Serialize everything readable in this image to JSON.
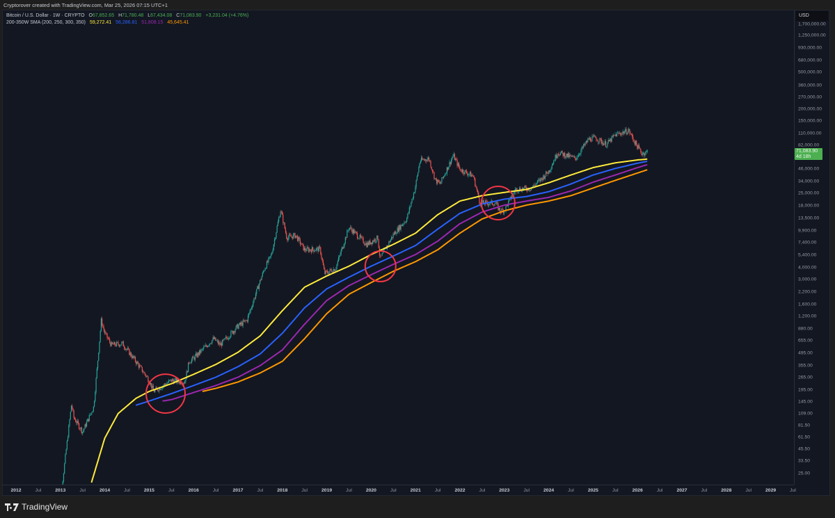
{
  "credit": "Cryptorover created with TradingView.com, Mar 25, 2026 07:15 UTC+1",
  "legend": {
    "symbol": "Bitcoin / U.S. Dollar · 1W · CRYPTO",
    "o_label": "O",
    "open": "67,852.65",
    "h_label": "H",
    "high": "71,780.48",
    "l_label": "L",
    "low": "67,434.08",
    "c_label": "C",
    "close": "71,083.90",
    "change": "+3,231.04 (+4.76%)",
    "indicator": "200-350W SMA (200, 250, 300, 350)",
    "sma200": "59,272.41",
    "sma250": "56,286.81",
    "sma300": "51,808.15",
    "sma350": "45,645.41"
  },
  "currency": "USD",
  "price_label": {
    "price": "71,083.90",
    "countdown": "4d 18h"
  },
  "brand": "TradingView",
  "colors": {
    "bg": "#131722",
    "up": "#26a69a",
    "down": "#ef5350",
    "sma200": "#ffeb3b",
    "sma250": "#2962ff",
    "sma300": "#9c27b0",
    "sma350": "#ff9800",
    "circle": "#f23645",
    "last": "#4caf50"
  },
  "chart_data": {
    "type": "candlestick",
    "title": "Bitcoin / U.S. Dollar · 1W · CRYPTO",
    "yscale": "log",
    "ylim": [
      19,
      1800000
    ],
    "xlim": [
      2011.8,
      2029.5
    ],
    "y_ticks": [
      "1,700,000.00",
      "1,250,000.00",
      "930,000.00",
      "680,000.00",
      "500,000.00",
      "360,000.00",
      "270,000.00",
      "200,000.00",
      "150,000.00",
      "110,000.00",
      "82,000.00",
      "46,000.00",
      "34,000.00",
      "25,000.00",
      "18,000.00",
      "13,500.00",
      "9,900.00",
      "7,400.00",
      "5,400.00",
      "4,000.00",
      "3,000.00",
      "2,200.00",
      "1,600.00",
      "1,200.00",
      "880.00",
      "655.00",
      "495.00",
      "355.00",
      "265.00",
      "195.00",
      "145.00",
      "109.00",
      "81.50",
      "61.50",
      "45.50",
      "33.50",
      "25.00"
    ],
    "x_ticks": [
      "2012",
      "Jul",
      "2013",
      "Jul",
      "2014",
      "Jul",
      "2015",
      "Jul",
      "2016",
      "Jul",
      "2017",
      "Jul",
      "2018",
      "Jul",
      "2019",
      "Jul",
      "2020",
      "Jul",
      "2021",
      "Jul",
      "2022",
      "Jul",
      "2023",
      "Jul",
      "2024",
      "Jul",
      "2025",
      "Jul",
      "2026",
      "Jul",
      "2027",
      "Jul",
      "2028",
      "Jul",
      "2029",
      "Jul"
    ],
    "price_series": [
      [
        2012.9,
        12
      ],
      [
        2013.0,
        13
      ],
      [
        2013.25,
        140
      ],
      [
        2013.3,
        100
      ],
      [
        2013.5,
        70
      ],
      [
        2013.75,
        130
      ],
      [
        2013.92,
        1100
      ],
      [
        2014.0,
        800
      ],
      [
        2014.15,
        600
      ],
      [
        2014.4,
        620
      ],
      [
        2014.7,
        400
      ],
      [
        2015.0,
        250
      ],
      [
        2015.1,
        190
      ],
      [
        2015.5,
        250
      ],
      [
        2015.8,
        240
      ],
      [
        2015.9,
        400
      ],
      [
        2016.0,
        430
      ],
      [
        2016.45,
        700
      ],
      [
        2016.6,
        600
      ],
      [
        2016.99,
        950
      ],
      [
        2017.2,
        1100
      ],
      [
        2017.45,
        2500
      ],
      [
        2017.6,
        4000
      ],
      [
        2017.75,
        5500
      ],
      [
        2017.96,
        17000
      ],
      [
        2018.1,
        8500
      ],
      [
        2018.3,
        9000
      ],
      [
        2018.5,
        6300
      ],
      [
        2018.85,
        6400
      ],
      [
        2018.95,
        3500
      ],
      [
        2019.2,
        4000
      ],
      [
        2019.5,
        11000
      ],
      [
        2019.9,
        7200
      ],
      [
        2020.15,
        8500
      ],
      [
        2020.2,
        5000
      ],
      [
        2020.5,
        9200
      ],
      [
        2020.8,
        13500
      ],
      [
        2020.99,
        29000
      ],
      [
        2021.1,
        57000
      ],
      [
        2021.3,
        60000
      ],
      [
        2021.45,
        35000
      ],
      [
        2021.55,
        32000
      ],
      [
        2021.85,
        65000
      ],
      [
        2022.0,
        46000
      ],
      [
        2022.3,
        39000
      ],
      [
        2022.45,
        20000
      ],
      [
        2022.8,
        20000
      ],
      [
        2022.9,
        16500
      ],
      [
        2023.0,
        16800
      ],
      [
        2023.25,
        28000
      ],
      [
        2023.6,
        29000
      ],
      [
        2023.8,
        35000
      ],
      [
        2024.0,
        44000
      ],
      [
        2024.2,
        70000
      ],
      [
        2024.6,
        60000
      ],
      [
        2024.9,
        97000
      ],
      [
        2025.05,
        100000
      ],
      [
        2025.3,
        85000
      ],
      [
        2025.5,
        108000
      ],
      [
        2025.8,
        120000
      ],
      [
        2025.95,
        88000
      ],
      [
        2026.1,
        68000
      ],
      [
        2026.23,
        71083.9
      ]
    ],
    "series": [
      {
        "name": "SMA 200",
        "color": "#ffeb3b",
        "points": [
          [
            2013.7,
            20
          ],
          [
            2014.0,
            60
          ],
          [
            2014.3,
            110
          ],
          [
            2014.7,
            160
          ],
          [
            2015.0,
            190
          ],
          [
            2015.5,
            230
          ],
          [
            2016.0,
            290
          ],
          [
            2016.5,
            370
          ],
          [
            2017.0,
            500
          ],
          [
            2017.5,
            750
          ],
          [
            2018.0,
            1400
          ],
          [
            2018.5,
            2500
          ],
          [
            2019.0,
            3300
          ],
          [
            2019.5,
            4200
          ],
          [
            2020.0,
            5600
          ],
          [
            2020.5,
            7200
          ],
          [
            2021.0,
            9500
          ],
          [
            2021.5,
            15000
          ],
          [
            2022.0,
            21000
          ],
          [
            2022.5,
            24000
          ],
          [
            2023.0,
            26000
          ],
          [
            2023.5,
            28000
          ],
          [
            2024.0,
            33000
          ],
          [
            2024.5,
            40000
          ],
          [
            2025.0,
            48000
          ],
          [
            2025.5,
            54000
          ],
          [
            2026.0,
            58000
          ],
          [
            2026.23,
            59272.41
          ]
        ]
      },
      {
        "name": "SMA 250",
        "color": "#2962ff",
        "points": [
          [
            2014.7,
            135
          ],
          [
            2015.0,
            150
          ],
          [
            2015.5,
            180
          ],
          [
            2016.0,
            220
          ],
          [
            2016.5,
            270
          ],
          [
            2017.0,
            350
          ],
          [
            2017.5,
            480
          ],
          [
            2018.0,
            800
          ],
          [
            2018.5,
            1500
          ],
          [
            2019.0,
            2400
          ],
          [
            2019.5,
            3200
          ],
          [
            2020.0,
            4200
          ],
          [
            2020.5,
            5400
          ],
          [
            2021.0,
            7000
          ],
          [
            2021.5,
            10500
          ],
          [
            2022.0,
            15500
          ],
          [
            2022.5,
            19500
          ],
          [
            2023.0,
            22000
          ],
          [
            2023.5,
            23500
          ],
          [
            2024.0,
            26500
          ],
          [
            2024.5,
            32000
          ],
          [
            2025.0,
            40000
          ],
          [
            2025.5,
            47000
          ],
          [
            2026.0,
            53500
          ],
          [
            2026.23,
            56286.81
          ]
        ]
      },
      {
        "name": "SMA 300",
        "color": "#9c27b0",
        "points": [
          [
            2015.3,
            150
          ],
          [
            2015.5,
            155
          ],
          [
            2016.0,
            185
          ],
          [
            2016.5,
            220
          ],
          [
            2017.0,
            270
          ],
          [
            2017.5,
            360
          ],
          [
            2018.0,
            530
          ],
          [
            2018.5,
            1000
          ],
          [
            2019.0,
            1800
          ],
          [
            2019.5,
            2600
          ],
          [
            2020.0,
            3400
          ],
          [
            2020.5,
            4400
          ],
          [
            2021.0,
            5600
          ],
          [
            2021.5,
            7800
          ],
          [
            2022.0,
            12000
          ],
          [
            2022.5,
            16000
          ],
          [
            2023.0,
            19000
          ],
          [
            2023.5,
            21000
          ],
          [
            2024.0,
            23000
          ],
          [
            2024.5,
            27000
          ],
          [
            2025.0,
            33500
          ],
          [
            2025.5,
            40000
          ],
          [
            2026.0,
            48000
          ],
          [
            2026.23,
            51808.15
          ]
        ]
      },
      {
        "name": "SMA 350",
        "color": "#ff9800",
        "points": [
          [
            2016.2,
            190
          ],
          [
            2016.5,
            205
          ],
          [
            2017.0,
            240
          ],
          [
            2017.5,
            300
          ],
          [
            2018.0,
            400
          ],
          [
            2018.5,
            700
          ],
          [
            2019.0,
            1300
          ],
          [
            2019.5,
            2100
          ],
          [
            2020.0,
            2800
          ],
          [
            2020.5,
            3700
          ],
          [
            2021.0,
            4700
          ],
          [
            2021.5,
            6300
          ],
          [
            2022.0,
            9500
          ],
          [
            2022.5,
            13500
          ],
          [
            2023.0,
            16500
          ],
          [
            2023.5,
            19000
          ],
          [
            2024.0,
            21000
          ],
          [
            2024.5,
            24000
          ],
          [
            2025.0,
            29000
          ],
          [
            2025.5,
            35000
          ],
          [
            2026.0,
            42000
          ],
          [
            2026.23,
            45645.41
          ]
        ]
      }
    ],
    "annotations": [
      {
        "type": "circle",
        "x": 2015.37,
        "y": 180
      },
      {
        "type": "circle",
        "x": 2020.21,
        "y": 4190
      },
      {
        "type": "circle",
        "x": 2022.86,
        "y": 20000
      }
    ]
  }
}
